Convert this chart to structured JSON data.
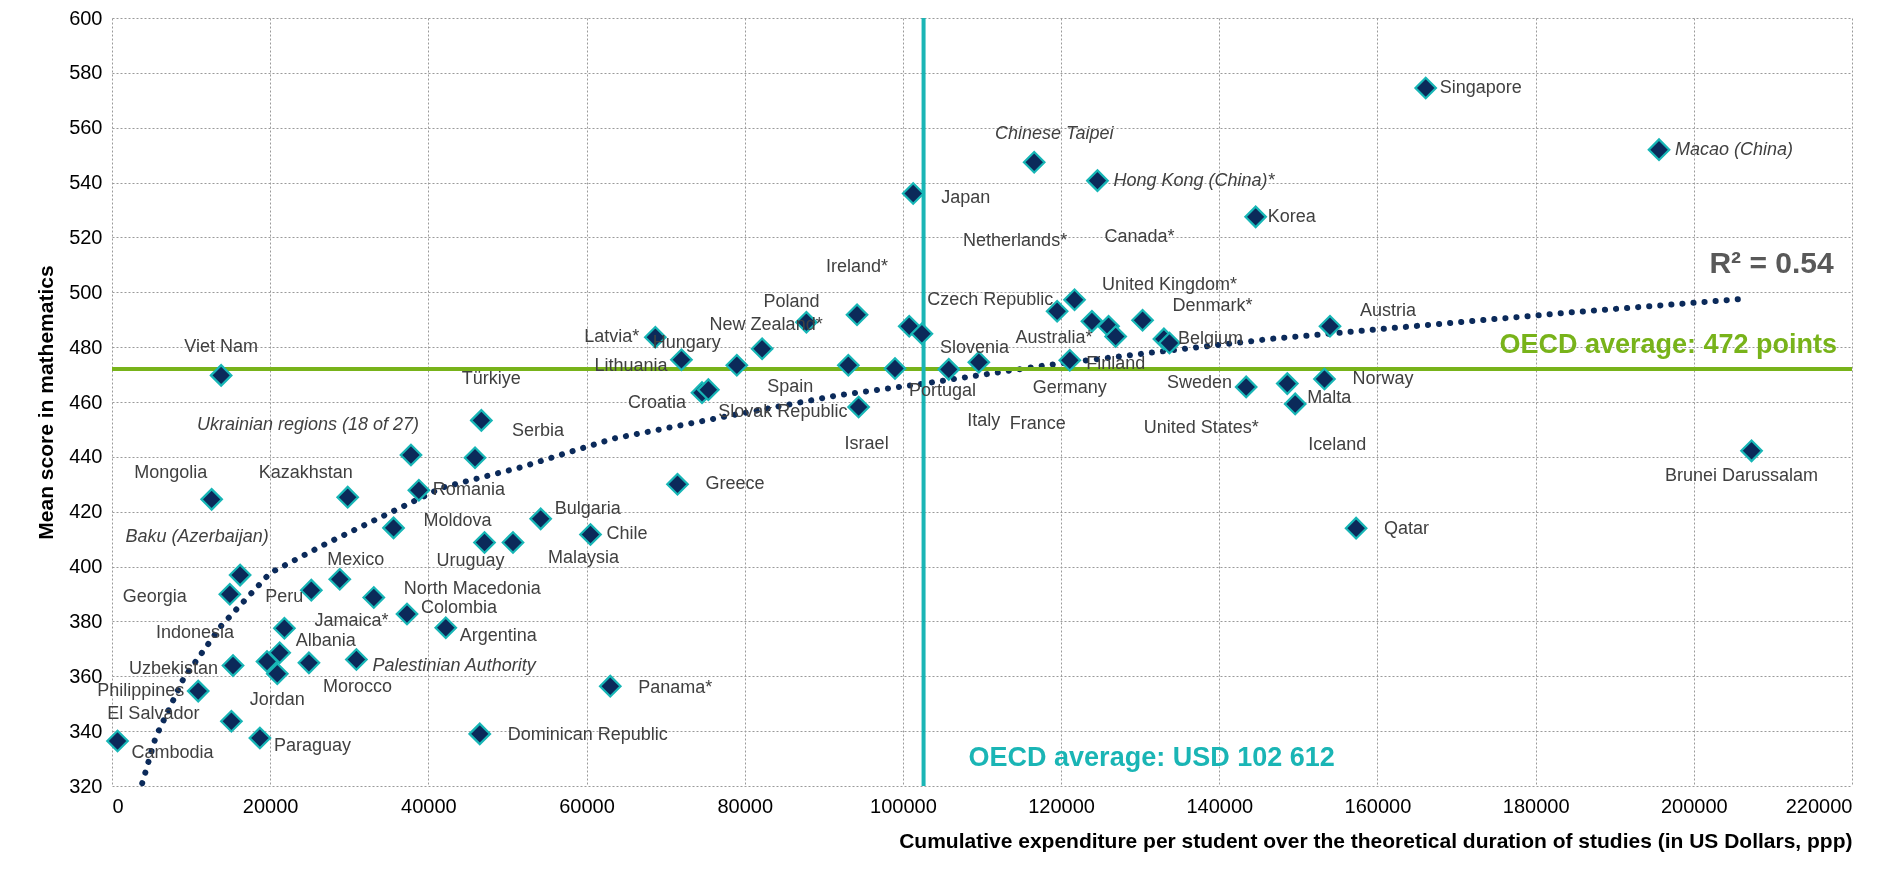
{
  "chart_data": {
    "type": "scatter",
    "xlabel": "Cumulative expenditure per student over the theoretical duration of studies (in US Dollars, ppp)",
    "ylabel": "Mean score in mathematics",
    "xlim": [
      0,
      220000
    ],
    "xticks": [
      0,
      20000,
      40000,
      60000,
      80000,
      100000,
      120000,
      140000,
      160000,
      180000,
      200000,
      220000
    ],
    "ylim": [
      320,
      600
    ],
    "yticks": [
      320,
      340,
      360,
      380,
      400,
      420,
      440,
      460,
      480,
      500,
      520,
      540,
      560,
      580,
      600
    ],
    "grid": true,
    "series": [
      {
        "type": "scatter",
        "color": "#0b2a5a",
        "marker": "diamond",
        "x": [
          166100,
          195600,
          116600,
          124600,
          101300,
          144600,
          100800,
          119500,
          121700,
          82200,
          94200,
          123900,
          154000,
          87800,
          102400,
          130300,
          68700,
          79000,
          126000,
          133000,
          13800,
          72000,
          93100,
          74600,
          133700,
          153300,
          126900,
          105800,
          148600,
          109600,
          143400,
          149600,
          75400,
          94400,
          99000,
          46700,
          37800,
          45900,
          121100,
          207300,
          12600,
          29800,
          38800,
          71500,
          54200,
          35600,
          60500,
          157300,
          16200,
          47100,
          50700,
          28800,
          14900,
          25200,
          33100,
          37300,
          21800,
          42200,
          19600,
          21200,
          30900,
          15300,
          20900,
          24900,
          63000,
          10900,
          15100,
          46500,
          700,
          18700
        ],
        "values": [
          574.5,
          552,
          547.4,
          540.7,
          536,
          527.5,
          487.6,
          493.1,
          497.3,
          479.4,
          491.8,
          489.4,
          487.6,
          489.1,
          484.9,
          489.8,
          483.6,
          473.4,
          487.6,
          483,
          469.7,
          475.4,
          473.4,
          463.4,
          481.5,
          468.4,
          483.9,
          471.9,
          466.7,
          474.5,
          465.5,
          459.3,
          464.5,
          458.2,
          472.2,
          453.3,
          440.7,
          439.7,
          475.2,
          442.2,
          424.5,
          425.3,
          427.8,
          430,
          417.4,
          414.1,
          411.7,
          414,
          396.9,
          408.8,
          408.8,
          395.4,
          389.9,
          391.4,
          388.7,
          382.7,
          377.5,
          377.7,
          365.4,
          368.6,
          366.1,
          363.9,
          360.9,
          364.9,
          356.4,
          354.6,
          343.6,
          339,
          336.4,
          337.5
        ],
        "value_labels": [
          "Singapore",
          "Macao (China)",
          "Chinese Taipei",
          "Hong Kong (China)*",
          "Japan",
          "Korea",
          "Czech Republic",
          "Netherlands*",
          "Canada*",
          "New Zealand*",
          "Ireland*",
          "United Kingdom*",
          "Austria",
          "Poland",
          "Slovenia",
          "Denmark*",
          "Latvia*",
          "Hungary",
          "Australia*",
          "Belgium",
          "Viet Nam",
          "Lithuania",
          "Spain",
          "Croatia",
          "Sweden",
          "Norway",
          "Finland",
          "Italy",
          "Malta",
          "France",
          "United States*",
          "Iceland",
          "Slovak Republic",
          "Israel",
          "Portugal",
          "Türkiye",
          "Ukrainian regions (18 of 27)",
          "Serbia",
          "Germany",
          "Brunei Darussalam",
          "Mongolia",
          "Kazakhstan",
          "Romania",
          "Greece",
          "Bulgaria",
          "Moldova",
          "Chile",
          "Qatar",
          "Baku (Azerbaijan)",
          "Uruguay",
          "Malaysia",
          "Mexico",
          "Georgia",
          "Peru",
          "North Macedonia",
          "Colombia",
          "Jamaica*",
          "Argentina",
          "Indonesia",
          "Albania",
          "Palestinian Authority",
          "Uzbekistan",
          "Jordan",
          "Morocco",
          "Panama*",
          "Philippines",
          "El Salvador",
          "Dominican Republic",
          "Cambodia",
          "Paraguay"
        ]
      },
      {
        "type": "line",
        "color": "#0b2a5a",
        "line_style": "dotted",
        "x": [
          3820,
          5520,
          9030,
          13780,
          19970,
          26830,
          34060,
          41740,
          51440,
          63300,
          77200,
          91500,
          102600,
          118100,
          132300,
          146800,
          164800,
          184200,
          205800
        ],
        "values": [
          321,
          337.8,
          359.1,
          378.3,
          397.6,
          408,
          418.1,
          428.8,
          436,
          446.6,
          454.5,
          462.3,
          466.7,
          473.4,
          478.3,
          483.1,
          487.7,
          492.6,
          497.5
        ]
      }
    ],
    "ref_lines": [
      {
        "axis": "y",
        "value": 472,
        "label": "OECD average: 472 points",
        "color": "#78b31a"
      },
      {
        "axis": "x",
        "value": 102612,
        "label": "OECD average: USD 102 612",
        "color": "#1ab5b5"
      }
    ],
    "annotations": [
      {
        "text": "R² = 0.54",
        "x": 205800,
        "y": 497.5
      }
    ]
  }
}
